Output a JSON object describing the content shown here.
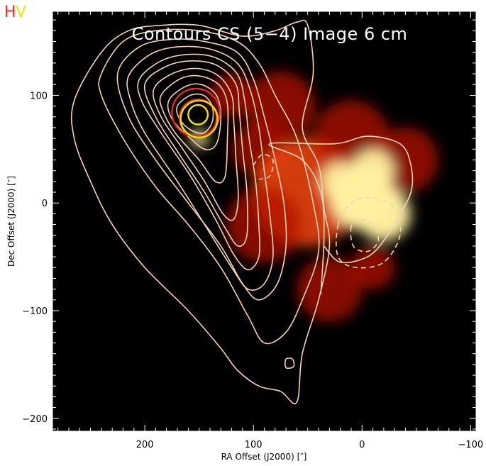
{
  "badge": {
    "left": {
      "text": "H",
      "color": "#e8251f"
    },
    "right": {
      "text": "V",
      "color": "#f3e600"
    }
  },
  "chart_data": {
    "type": "contour-overlay",
    "title": "Contours CS (5−4) Image 6 cm",
    "xlabel": "RA Offset (J2000) [″]",
    "ylabel": "Dec Offset (J2000) [″]",
    "xlim": [
      285,
      -105
    ],
    "ylim": [
      -212,
      178
    ],
    "x_ticks": [
      200,
      100,
      0,
      -100
    ],
    "x_tick_labels": [
      "200",
      "100",
      "0",
      "−100"
    ],
    "y_ticks": [
      100,
      0,
      -100,
      -200
    ],
    "y_tick_labels": [
      "100",
      "0",
      "−100",
      "−200"
    ],
    "colors": {
      "background": "#000000",
      "contour": "#f4d4b6",
      "emission_dim": "#b01000",
      "emission_mid": "#ff4a10",
      "emission_bright": "#fff0a0",
      "marker_red": "#e8251f",
      "marker_yellow": "#f3e600"
    },
    "background_image": {
      "description_role": "6 cm image (red-yellow colormap)",
      "blobs": [
        {
          "x": 95,
          "y": 50,
          "r": 25,
          "level": 0.45
        },
        {
          "x": 75,
          "y": 90,
          "r": 32,
          "level": 0.5
        },
        {
          "x": 50,
          "y": 10,
          "r": 50,
          "level": 0.6
        },
        {
          "x": 90,
          "y": -20,
          "r": 35,
          "level": 0.45
        },
        {
          "x": 30,
          "y": -80,
          "r": 30,
          "level": 0.45
        },
        {
          "x": 10,
          "y": 60,
          "r": 35,
          "level": 0.5
        },
        {
          "x": -40,
          "y": 40,
          "r": 30,
          "level": 0.5
        },
        {
          "x": 0,
          "y": 5,
          "r": 30,
          "level": 1.0
        },
        {
          "x": -20,
          "y": -10,
          "r": 25,
          "level": 0.95
        },
        {
          "x": -10,
          "y": 30,
          "r": 20,
          "level": 0.9
        },
        {
          "x": 20,
          "y": 20,
          "r": 18,
          "level": 0.85
        },
        {
          "x": 150,
          "y": 60,
          "r": 8,
          "level": 0.9
        },
        {
          "x": 120,
          "y": 100,
          "r": 20,
          "level": 0.5
        },
        {
          "x": -10,
          "y": -60,
          "r": 20,
          "level": 0.5
        }
      ]
    },
    "markers": [
      {
        "x": 153,
        "y": 84,
        "r": 22,
        "color": "#e8251f"
      },
      {
        "x": 151,
        "y": 79,
        "r": 17,
        "color": "#e8251f"
      },
      {
        "x": 150,
        "y": 78,
        "r": 17,
        "color": "#f3e600"
      },
      {
        "x": 151,
        "y": 82,
        "r": 9,
        "color": "#f3e600"
      }
    ],
    "contours": [
      {
        "style": "solid",
        "closed": true,
        "points": [
          [
            265,
            95
          ],
          [
            240,
            140
          ],
          [
            215,
            160
          ],
          [
            185,
            165
          ],
          [
            150,
            165
          ],
          [
            110,
            155
          ],
          [
            80,
            160
          ],
          [
            60,
            168
          ],
          [
            50,
            165
          ],
          [
            45,
            120
          ],
          [
            55,
            70
          ],
          [
            40,
            35
          ],
          [
            35,
            -5
          ],
          [
            30,
            -40
          ],
          [
            40,
            -90
          ],
          [
            55,
            -140
          ],
          [
            60,
            -185
          ],
          [
            75,
            -175
          ],
          [
            95,
            -170
          ],
          [
            115,
            -155
          ],
          [
            130,
            -135
          ],
          [
            160,
            -100
          ],
          [
            200,
            -60
          ],
          [
            230,
            -20
          ],
          [
            250,
            20
          ],
          [
            265,
            60
          ]
        ]
      },
      {
        "style": "solid",
        "closed": true,
        "points": [
          [
            240,
            120
          ],
          [
            220,
            150
          ],
          [
            190,
            160
          ],
          [
            150,
            160
          ],
          [
            115,
            150
          ],
          [
            95,
            130
          ],
          [
            80,
            100
          ],
          [
            60,
            60
          ],
          [
            45,
            0
          ],
          [
            40,
            -45
          ],
          [
            55,
            -90
          ],
          [
            70,
            -120
          ],
          [
            90,
            -130
          ],
          [
            105,
            -105
          ],
          [
            130,
            -60
          ],
          [
            160,
            -20
          ],
          [
            190,
            15
          ],
          [
            220,
            60
          ],
          [
            240,
            100
          ]
        ]
      },
      {
        "style": "solid",
        "closed": true,
        "points": [
          [
            225,
            120
          ],
          [
            205,
            145
          ],
          [
            175,
            152
          ],
          [
            145,
            150
          ],
          [
            115,
            140
          ],
          [
            100,
            115
          ],
          [
            90,
            80
          ],
          [
            80,
            40
          ],
          [
            72,
            0
          ],
          [
            70,
            -40
          ],
          [
            78,
            -75
          ],
          [
            95,
            -90
          ],
          [
            110,
            -75
          ],
          [
            130,
            -40
          ],
          [
            160,
            0
          ],
          [
            190,
            40
          ],
          [
            215,
            80
          ]
        ]
      },
      {
        "style": "solid",
        "closed": true,
        "points": [
          [
            215,
            118
          ],
          [
            195,
            138
          ],
          [
            170,
            145
          ],
          [
            140,
            143
          ],
          [
            115,
            130
          ],
          [
            103,
            105
          ],
          [
            95,
            70
          ],
          [
            90,
            30
          ],
          [
            85,
            -10
          ],
          [
            82,
            -50
          ],
          [
            90,
            -75
          ],
          [
            105,
            -80
          ],
          [
            120,
            -60
          ],
          [
            145,
            -20
          ],
          [
            170,
            20
          ],
          [
            200,
            65
          ],
          [
            213,
            95
          ]
        ]
      },
      {
        "style": "solid",
        "closed": true,
        "points": [
          [
            205,
            115
          ],
          [
            185,
            132
          ],
          [
            160,
            138
          ],
          [
            135,
            135
          ],
          [
            115,
            120
          ],
          [
            108,
            95
          ],
          [
            104,
            60
          ],
          [
            98,
            20
          ],
          [
            95,
            -20
          ],
          [
            95,
            -50
          ],
          [
            105,
            -62
          ],
          [
            118,
            -48
          ],
          [
            135,
            -15
          ],
          [
            158,
            25
          ],
          [
            185,
            65
          ],
          [
            203,
            95
          ]
        ]
      },
      {
        "style": "solid",
        "closed": true,
        "points": [
          [
            200,
            110
          ],
          [
            180,
            127
          ],
          [
            155,
            132
          ],
          [
            132,
            127
          ],
          [
            116,
            110
          ],
          [
            113,
            85
          ],
          [
            110,
            50
          ],
          [
            106,
            10
          ],
          [
            106,
            -30
          ],
          [
            114,
            -40
          ],
          [
            125,
            -25
          ],
          [
            145,
            10
          ],
          [
            168,
            45
          ],
          [
            190,
            80
          ]
        ]
      },
      {
        "style": "solid",
        "closed": true,
        "points": [
          [
            192,
            105
          ],
          [
            175,
            120
          ],
          [
            152,
            125
          ],
          [
            132,
            118
          ],
          [
            120,
            100
          ],
          [
            118,
            75
          ],
          [
            116,
            40
          ],
          [
            114,
            5
          ],
          [
            118,
            -15
          ],
          [
            128,
            -10
          ],
          [
            145,
            20
          ],
          [
            165,
            50
          ],
          [
            185,
            80
          ]
        ]
      },
      {
        "style": "solid",
        "closed": true,
        "points": [
          [
            185,
            100
          ],
          [
            168,
            115
          ],
          [
            150,
            118
          ],
          [
            132,
            110
          ],
          [
            124,
            92
          ],
          [
            124,
            60
          ],
          [
            126,
            25
          ],
          [
            135,
            20
          ],
          [
            150,
            40
          ],
          [
            172,
            65
          ],
          [
            183,
            85
          ]
        ]
      },
      {
        "style": "solid",
        "closed": true,
        "points": [
          [
            178,
            95
          ],
          [
            163,
            108
          ],
          [
            148,
            110
          ],
          [
            134,
            100
          ],
          [
            130,
            80
          ],
          [
            134,
            55
          ],
          [
            145,
            50
          ],
          [
            160,
            62
          ],
          [
            175,
            78
          ]
        ]
      },
      {
        "style": "solid",
        "closed": true,
        "points": [
          [
            170,
            90
          ],
          [
            158,
            100
          ],
          [
            146,
            100
          ],
          [
            138,
            90
          ],
          [
            138,
            75
          ],
          [
            146,
            65
          ],
          [
            158,
            68
          ],
          [
            168,
            78
          ]
        ]
      },
      {
        "style": "solid",
        "closed": true,
        "points": [
          [
            70,
            -145
          ],
          [
            64,
            -145
          ],
          [
            63,
            -152
          ],
          [
            70,
            -153
          ]
        ]
      },
      {
        "style": "solid",
        "closed": false,
        "points": [
          [
            38,
            -85
          ],
          [
            35,
            -30
          ],
          [
            38,
            10
          ],
          [
            55,
            40
          ],
          [
            85,
            55
          ],
          [
            25,
            55
          ],
          [
            -5,
            62
          ],
          [
            -35,
            55
          ],
          [
            -45,
            35
          ],
          [
            -45,
            10
          ],
          [
            -32,
            -15
          ],
          [
            -20,
            -35
          ],
          [
            -5,
            -50
          ],
          [
            20,
            -55
          ],
          [
            35,
            -40
          ]
        ]
      },
      {
        "style": "dashed",
        "closed": true,
        "points": [
          [
            22,
            -20
          ],
          [
            22,
            -50
          ],
          [
            5,
            -60
          ],
          [
            -20,
            -55
          ],
          [
            -35,
            -30
          ],
          [
            -30,
            -5
          ],
          [
            -10,
            5
          ],
          [
            10,
            0
          ]
        ]
      },
      {
        "style": "dashed",
        "closed": true,
        "points": [
          [
            10,
            -22
          ],
          [
            8,
            -40
          ],
          [
            -5,
            -45
          ],
          [
            -15,
            -35
          ],
          [
            -10,
            -20
          ],
          [
            2,
            -15
          ]
        ]
      },
      {
        "style": "dashed",
        "closed": false,
        "points": [
          [
            100,
            35
          ],
          [
            92,
            45
          ],
          [
            82,
            40
          ],
          [
            85,
            25
          ],
          [
            95,
            22
          ]
        ]
      }
    ]
  }
}
